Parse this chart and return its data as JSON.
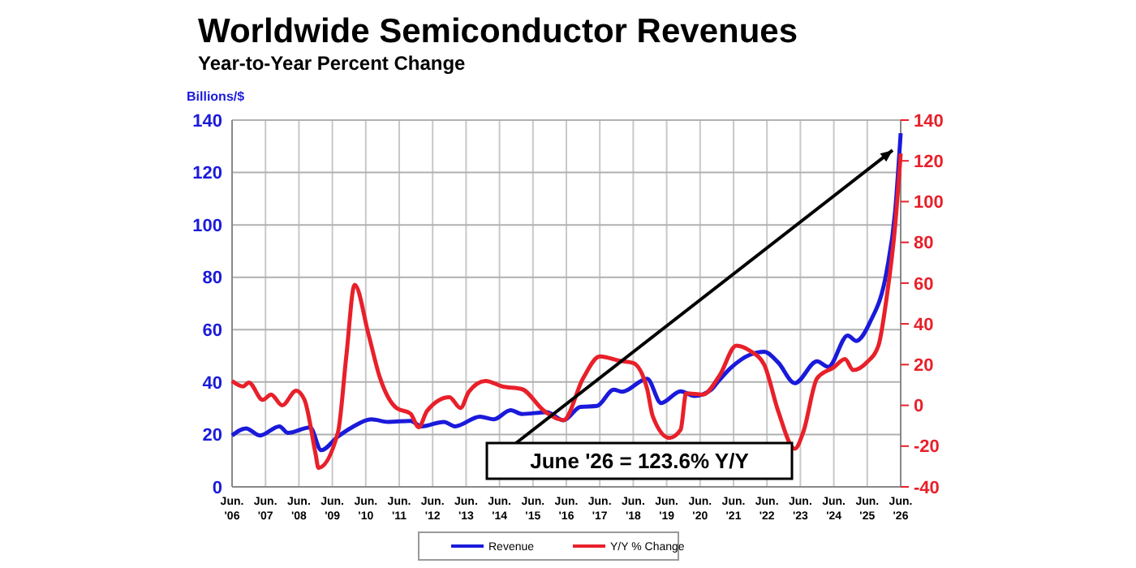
{
  "chart_data": {
    "type": "line",
    "title": "Worldwide Semiconductor Revenues",
    "subtitle": "Year-to-Year Percent Change",
    "ylabel": "Billions/$",
    "xlim": [
      "2006-06",
      "2026-06"
    ],
    "xticks": [
      {
        "value": "2006-06",
        "label": "Jun. '06"
      },
      {
        "value": "2007-06",
        "label": "Jun. '07"
      },
      {
        "value": "2008-06",
        "label": "Jun. '08"
      },
      {
        "value": "2009-06",
        "label": "Jun. '09"
      },
      {
        "value": "2010-06",
        "label": "Jun. '10"
      },
      {
        "value": "2011-06",
        "label": "Jun. '11"
      },
      {
        "value": "2012-06",
        "label": "Jun. '12"
      },
      {
        "value": "2013-06",
        "label": "Jun. '13"
      },
      {
        "value": "2014-06",
        "label": "Jun. '14"
      },
      {
        "value": "2015-06",
        "label": "Jun. '15"
      },
      {
        "value": "2016-06",
        "label": "Jun. '16"
      },
      {
        "value": "2017-06",
        "label": "Jun. '17"
      },
      {
        "value": "2018-06",
        "label": "Jun. '18"
      },
      {
        "value": "2019-06",
        "label": "Jun. '19"
      },
      {
        "value": "2020-06",
        "label": "Jun. '20"
      },
      {
        "value": "2021-06",
        "label": "Jun. '21"
      },
      {
        "value": "2022-06",
        "label": "Jun. '22"
      },
      {
        "value": "2023-06",
        "label": "Jun. '23"
      },
      {
        "value": "2024-06",
        "label": "Jun. '24"
      },
      {
        "value": "2025-06",
        "label": "Jun. '25"
      },
      {
        "value": "2026-06",
        "label": "Jun. '26"
      }
    ],
    "ylim": [
      0,
      140
    ],
    "yticks": [
      0,
      20,
      40,
      60,
      80,
      100,
      120,
      140
    ],
    "y2lim": [
      -40,
      140
    ],
    "y2ticks": [
      -40,
      -20,
      0,
      20,
      40,
      60,
      80,
      100,
      120,
      140
    ],
    "grid": true,
    "legend": "bottom",
    "series": [
      {
        "name": "Revenue",
        "color": "#1a1adb",
        "x": [
          "2006-06",
          "2006-11",
          "2007-04",
          "2007-11",
          "2008-02",
          "2008-10",
          "2009-02",
          "2009-08",
          "2010-01",
          "2010-08",
          "2011-02",
          "2011-10",
          "2012-02",
          "2012-10",
          "2013-02",
          "2013-11",
          "2014-04",
          "2014-10",
          "2015-02",
          "2015-11",
          "2016-05",
          "2016-11",
          "2017-05",
          "2017-11",
          "2018-02",
          "2018-11",
          "2019-04",
          "2019-11",
          "2020-04",
          "2020-10",
          "2020-12",
          "2021-05",
          "2021-12",
          "2022-05",
          "2022-10",
          "2023-04",
          "2023-12",
          "2024-04",
          "2024-11",
          "2025-02",
          "2025-07",
          "2026-01",
          "2026-04",
          "2026-06"
        ],
        "values": [
          19.6,
          22.3,
          19.6,
          23.1,
          20.6,
          22.7,
          14.0,
          19.2,
          22.7,
          25.8,
          24.8,
          25.2,
          23.1,
          24.8,
          23.1,
          26.8,
          25.8,
          29.3,
          27.8,
          28.5,
          25.4,
          30.5,
          30.9,
          37.1,
          36.3,
          41.3,
          32.0,
          36.5,
          34.7,
          37.1,
          39.6,
          45.4,
          50.5,
          51.6,
          47.5,
          39.6,
          47.9,
          45.8,
          57.8,
          55.7,
          62.9,
          82.5,
          105,
          135
        ]
      },
      {
        "name": "Y/Y % Change",
        "color": "#e8202a",
        "axis": "y2",
        "x": [
          "2006-06",
          "2006-10",
          "2006-12",
          "2007-05",
          "2007-08",
          "2007-12",
          "2008-05",
          "2008-08",
          "2008-12",
          "2009-01",
          "2009-08",
          "2009-11",
          "2010-02",
          "2010-07",
          "2010-11",
          "2011-05",
          "2011-10",
          "2012-01",
          "2012-04",
          "2012-12",
          "2013-04",
          "2013-07",
          "2014-01",
          "2014-07",
          "2015-02",
          "2015-10",
          "2016-05",
          "2016-12",
          "2017-06",
          "2018-01",
          "2018-06",
          "2018-11",
          "2019-01",
          "2019-07",
          "2019-11",
          "2020-01",
          "2020-07",
          "2021-01",
          "2021-07",
          "2021-12",
          "2022-05",
          "2022-10",
          "2023-04",
          "2023-07",
          "2023-12",
          "2024-06",
          "2024-10",
          "2025-01",
          "2025-06",
          "2025-10",
          "2026-01",
          "2026-04",
          "2026-06"
        ],
        "values": [
          12.0,
          9.3,
          11.2,
          2.7,
          5.3,
          0,
          7.2,
          2.7,
          -24,
          -30.7,
          -13.3,
          24,
          59.2,
          34.7,
          13.9,
          -1.3,
          -4,
          -10.7,
          -2.7,
          4.0,
          -1.3,
          6.7,
          12,
          9.3,
          8,
          -2.7,
          -7.2,
          13.3,
          24,
          21.9,
          20.8,
          8,
          -5.3,
          -16,
          -12,
          5.9,
          5.3,
          14.7,
          29.3,
          26.7,
          20,
          -2.7,
          -21.3,
          -13.3,
          13.3,
          18.7,
          22.7,
          17.3,
          21.3,
          29.3,
          53.3,
          88,
          123.6
        ]
      }
    ],
    "annotations": [
      "June '26 = 123.6% Y/Y"
    ]
  }
}
